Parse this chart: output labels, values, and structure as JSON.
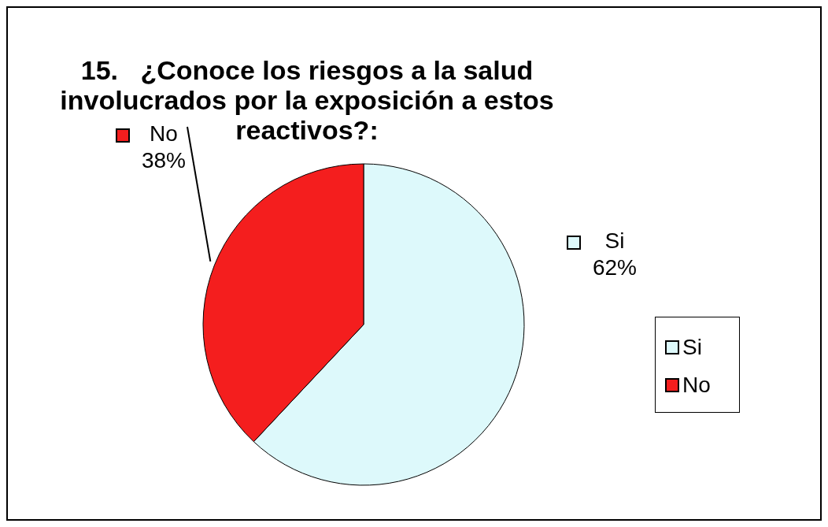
{
  "chart_data": {
    "type": "pie",
    "title": "15.   ¿Conoce los riesgos a la salud involucrados por la exposición a estos reactivos?:",
    "categories": [
      "Si",
      "No"
    ],
    "values": [
      62,
      38
    ],
    "colors": [
      "#ddf9fb",
      "#f41e1e"
    ],
    "value_labels": [
      "62%",
      "38%"
    ],
    "legend": "right"
  }
}
